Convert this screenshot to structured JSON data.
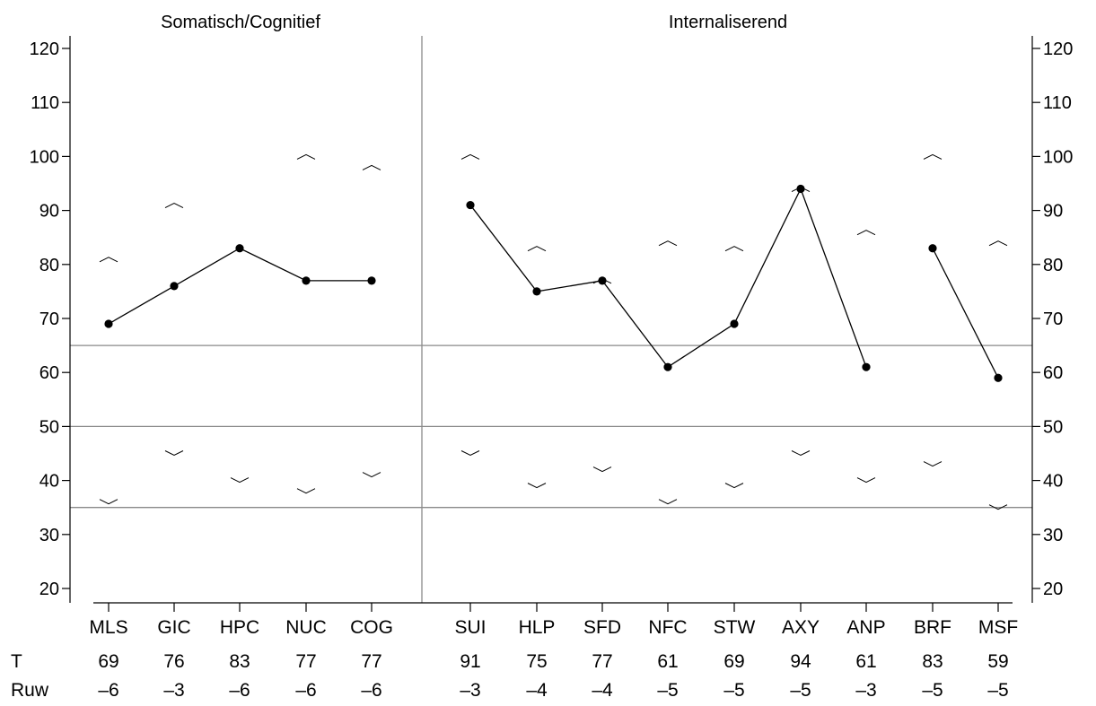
{
  "chart_data": {
    "type": "line",
    "ylim": [
      17,
      125
    ],
    "yticks": [
      20,
      30,
      40,
      50,
      60,
      70,
      80,
      90,
      100,
      110,
      120
    ],
    "reference_lines": [
      65,
      50,
      35
    ],
    "groups": [
      {
        "label": "Somatisch/Cognitief",
        "scales": [
          "MLS",
          "GIC",
          "HPC",
          "NUC",
          "COG"
        ],
        "t_scores": [
          69,
          76,
          83,
          77,
          77
        ],
        "raw": [
          "–6",
          "–3",
          "–6",
          "–6",
          "–6"
        ],
        "upper_markers": [
          81,
          91,
          null,
          100,
          98
        ],
        "lower_markers": [
          36,
          45,
          40,
          38,
          41
        ],
        "segments": [
          [
            0,
            4
          ]
        ]
      },
      {
        "label": "Internaliserend",
        "scales": [
          "SUI",
          "HLP",
          "SFD",
          "NFC",
          "STW",
          "AXY",
          "ANP",
          "BRF",
          "MSF"
        ],
        "t_scores": [
          91,
          75,
          77,
          61,
          69,
          94,
          61,
          83,
          59
        ],
        "raw": [
          "–3",
          "–4",
          "–4",
          "–5",
          "–5",
          "–5",
          "–3",
          "–5",
          "–5"
        ],
        "upper_markers": [
          100,
          83,
          77,
          84,
          83,
          94,
          86,
          100,
          84
        ],
        "lower_markers": [
          45,
          39,
          42,
          36,
          39,
          45,
          40,
          43,
          35
        ],
        "segments": [
          [
            0,
            6
          ],
          [
            7,
            8
          ]
        ]
      }
    ],
    "row_labels": {
      "t": "T",
      "raw": "Ruw"
    }
  }
}
